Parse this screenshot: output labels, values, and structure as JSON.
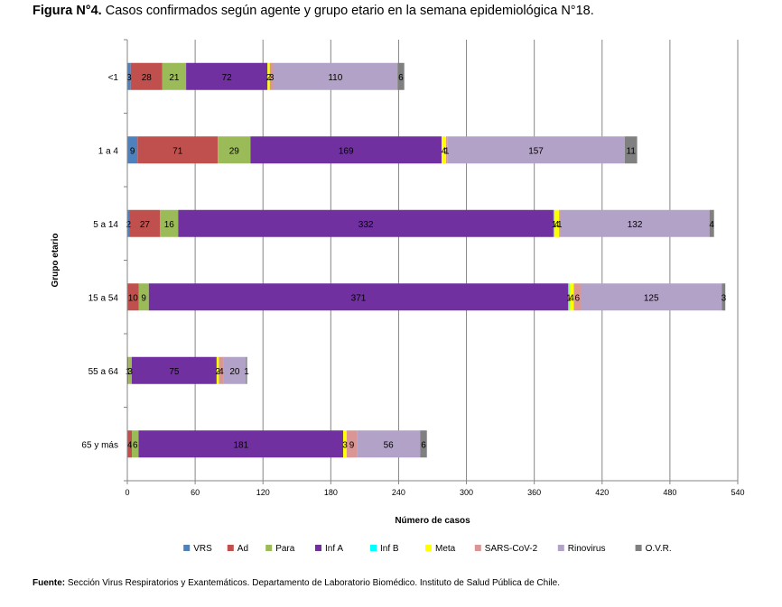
{
  "title_lead": "Figura N°4.",
  "title_rest": "Casos confirmados según agente y grupo etario en la semana epidemiológica N°18.",
  "source_lead": "Fuente:",
  "source_rest": "Sección Virus Respiratorios y Exantemáticos. Departamento de Laboratorio Biomédico. Instituto de Salud Pública de Chile.",
  "chart_data": {
    "type": "bar",
    "orientation": "horizontal",
    "stacked": true,
    "xlabel": "Número de casos",
    "ylabel": "Grupo etario",
    "xlim": [
      0,
      540
    ],
    "xticks": [
      0,
      60,
      120,
      180,
      240,
      300,
      360,
      420,
      480,
      540
    ],
    "grid": "vertical",
    "legend_position": "bottom",
    "categories": [
      "<1",
      "1 a 4",
      "5 a 14",
      "15 a 54",
      "55 a 64",
      "65 y más"
    ],
    "series": [
      {
        "name": "VRS",
        "color": "#4f81bd",
        "values": [
          3,
          9,
          2,
          0,
          0,
          0
        ]
      },
      {
        "name": "Ad",
        "color": "#c0504d",
        "values": [
          28,
          71,
          27,
          10,
          1,
          4
        ]
      },
      {
        "name": "Para",
        "color": "#9bbb59",
        "values": [
          21,
          29,
          16,
          9,
          3,
          6
        ]
      },
      {
        "name": "Inf A",
        "color": "#7030a0",
        "values": [
          72,
          169,
          332,
          371,
          75,
          181
        ]
      },
      {
        "name": "Inf B",
        "color": "#00ffff",
        "values": [
          0,
          0,
          1,
          1,
          0,
          0
        ]
      },
      {
        "name": "Meta",
        "color": "#ffff00",
        "values": [
          2,
          4,
          4,
          4,
          2,
          3
        ]
      },
      {
        "name": "SARS-CoV-2",
        "color": "#d99694",
        "values": [
          3,
          1,
          1,
          6,
          4,
          9
        ]
      },
      {
        "name": "Rinovirus",
        "color": "#b3a2c7",
        "values": [
          110,
          157,
          132,
          125,
          20,
          56
        ]
      },
      {
        "name": "O.V.R.",
        "color": "#808080",
        "values": [
          6,
          11,
          4,
          3,
          1,
          6
        ]
      }
    ],
    "data_labels": [
      [
        "3",
        "28",
        "21",
        "72",
        "2",
        "3",
        "110",
        "6"
      ],
      [
        "9",
        "71",
        "29",
        "169",
        "4",
        "1",
        "157",
        "11"
      ],
      [
        "2",
        "27",
        "16",
        "332",
        "1",
        "4",
        "1",
        "132",
        "4"
      ],
      [
        "10",
        "9",
        "371",
        "1",
        "4",
        "6",
        "125",
        "3"
      ],
      [
        "1",
        "3",
        "75",
        "2",
        "4",
        "20",
        "1"
      ],
      [
        "4",
        "6",
        "181",
        "3",
        "9",
        "56",
        "6"
      ]
    ]
  }
}
